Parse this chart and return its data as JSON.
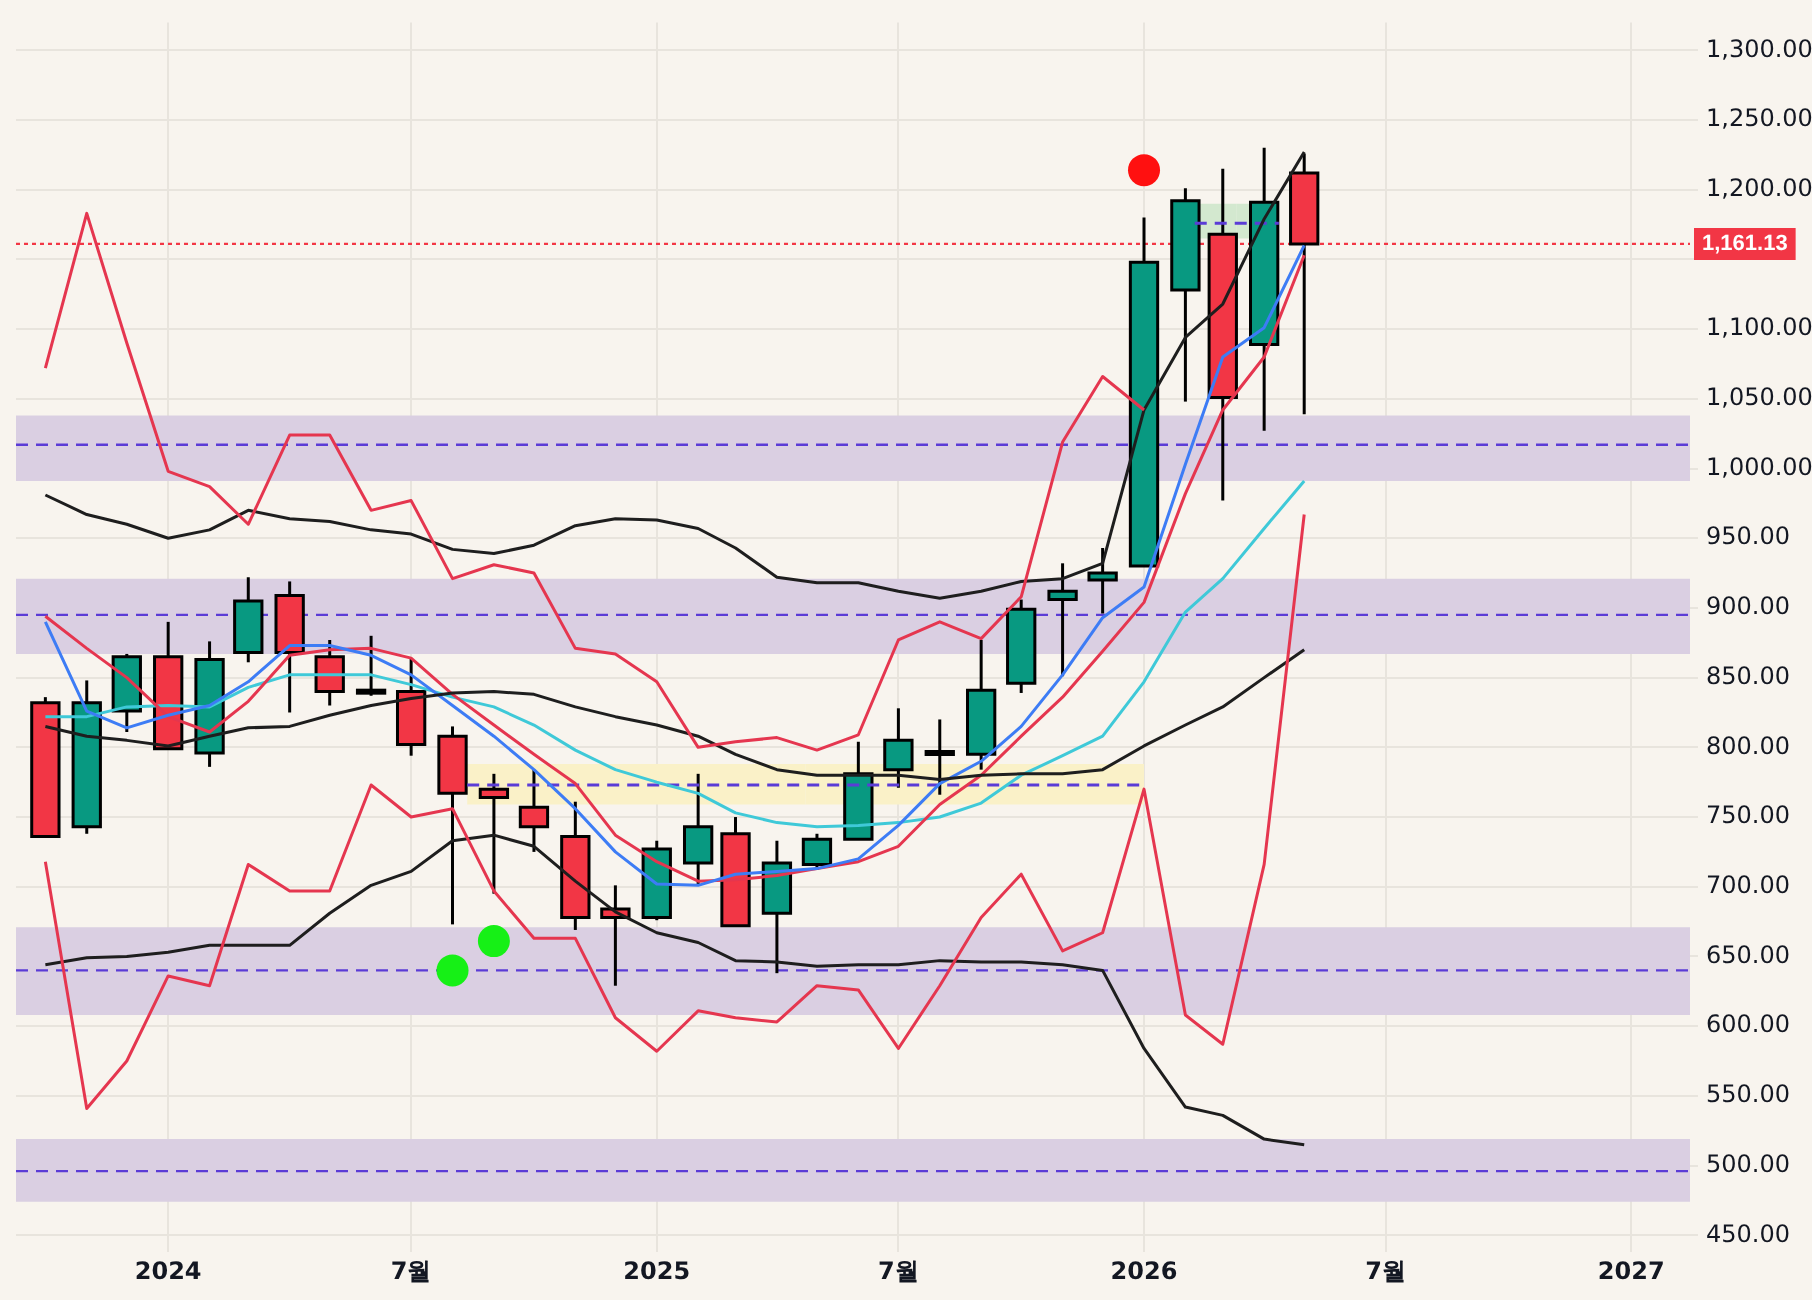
{
  "chart_data": {
    "type": "candlestick",
    "x": [
      "2023-10",
      "2023-11",
      "2023-12",
      "2024-01",
      "2024-02",
      "2024-03",
      "2024-04",
      "2024-05",
      "2024-06",
      "2024-07",
      "2024-08",
      "2024-09",
      "2024-10",
      "2024-11",
      "2024-12",
      "2025-01",
      "2025-02",
      "2025-03",
      "2025-04",
      "2025-05",
      "2025-06",
      "2025-07",
      "2025-08",
      "2025-09",
      "2025-10",
      "2025-11",
      "2025-12",
      "2026-01",
      "2026-02",
      "2026-03",
      "2026-04",
      "2026-05"
    ],
    "ohlc": [
      [
        832,
        836,
        736,
        736
      ],
      [
        743,
        848,
        738,
        832
      ],
      [
        826,
        867,
        811,
        865
      ],
      [
        865,
        890,
        799,
        799
      ],
      [
        796,
        876,
        786,
        863
      ],
      [
        868,
        922,
        861,
        905
      ],
      [
        909,
        919,
        825,
        868
      ],
      [
        865,
        877,
        830,
        840
      ],
      [
        841,
        880,
        837,
        840
      ],
      [
        840,
        864,
        794,
        802
      ],
      [
        808,
        815,
        673,
        767
      ],
      [
        770,
        781,
        695,
        764
      ],
      [
        757,
        784,
        725,
        743
      ],
      [
        736,
        761,
        669,
        678
      ],
      [
        684,
        701,
        629,
        678
      ],
      [
        678,
        733,
        676,
        727
      ],
      [
        717,
        781,
        702,
        743
      ],
      [
        738,
        750,
        672,
        672
      ],
      [
        681,
        733,
        638,
        717
      ],
      [
        716,
        738,
        712,
        734
      ],
      [
        734,
        804,
        734,
        781
      ],
      [
        784,
        828,
        771,
        805
      ],
      [
        796,
        820,
        766,
        797
      ],
      [
        795,
        877,
        784,
        841
      ],
      [
        846,
        906,
        839,
        899
      ],
      [
        906,
        932,
        851,
        912
      ],
      [
        920,
        943,
        896,
        925
      ],
      [
        930,
        1180,
        930,
        1148
      ],
      [
        1128,
        1201,
        1048,
        1192
      ],
      [
        1168,
        1215,
        977,
        1051
      ],
      [
        1089,
        1230,
        1027,
        1191
      ],
      [
        1212,
        1226,
        1039,
        1161.13
      ]
    ],
    "colors": [
      "#f23645",
      "#089981",
      "#089981",
      "#f23645",
      "#089981",
      "#089981",
      "#f23645",
      "#f23645",
      "#f23645",
      "#f23645",
      "#f23645",
      "#f23645",
      "#f23645",
      "#f23645",
      "#f23645",
      "#089981",
      "#089981",
      "#f23645",
      "#089981",
      "#089981",
      "#089981",
      "#089981",
      "#089981",
      "#089981",
      "#089981",
      "#089981",
      "#089981",
      "#089981",
      "#089981",
      "#f23645",
      "#089981",
      "#f23645"
    ],
    "series": [
      {
        "type": "line",
        "color": "#e5364f",
        "values": [
          1072,
          1183,
          1090,
          998,
          987,
          960,
          1024,
          1024,
          970,
          977,
          921,
          931,
          925,
          871,
          867,
          847,
          800,
          804,
          807,
          798,
          809,
          877,
          890,
          878,
          908,
          1019,
          1066,
          1042,
          null,
          null,
          null,
          null
        ]
      },
      {
        "type": "line",
        "color": "#e5364f",
        "values": [
          718,
          541,
          575,
          636,
          629,
          716,
          697,
          697,
          773,
          750,
          756,
          697,
          663,
          663,
          606,
          582,
          611,
          606,
          603,
          629,
          626,
          584,
          629,
          678,
          709,
          654,
          667,
          770,
          608,
          587,
          716,
          967
        ]
      },
      {
        "type": "line",
        "color": "#1e1e1e",
        "values": [
          981,
          967,
          960,
          950,
          956,
          970,
          964,
          962,
          956,
          953,
          942,
          939,
          945,
          959,
          964,
          963,
          957,
          943,
          922,
          918,
          918,
          912,
          907,
          912,
          919,
          921,
          932,
          1042,
          1094,
          1118,
          1179,
          1227
        ]
      },
      {
        "type": "line",
        "color": "#1e1e1e",
        "values": [
          815,
          808,
          805,
          801,
          808,
          814,
          815,
          823,
          830,
          835,
          839,
          840,
          838,
          829,
          822,
          816,
          808,
          795,
          784,
          780,
          780,
          780,
          777,
          780,
          781,
          781,
          784,
          801,
          816,
          829,
          850,
          870
        ]
      },
      {
        "type": "line",
        "color": "#1e1e1e",
        "values": [
          644,
          649,
          650,
          653,
          658,
          658,
          658,
          681,
          701,
          711,
          733,
          737,
          729,
          704,
          682,
          667,
          660,
          647,
          646,
          643,
          644,
          644,
          647,
          646,
          646,
          644,
          640,
          584,
          542,
          536,
          519,
          515
        ]
      },
      {
        "type": "line",
        "color": "#3d7cf5",
        "values": [
          890,
          826,
          814,
          823,
          830,
          847,
          873,
          873,
          866,
          852,
          830,
          808,
          784,
          756,
          725,
          702,
          701,
          709,
          711,
          713,
          720,
          744,
          774,
          790,
          815,
          852,
          893,
          915,
          1003,
          1080,
          1101,
          1160
        ]
      },
      {
        "type": "line",
        "color": "#e5364f",
        "values": [
          894,
          871,
          850,
          822,
          811,
          833,
          866,
          870,
          871,
          864,
          838,
          816,
          795,
          774,
          737,
          718,
          704,
          705,
          708,
          713,
          718,
          729,
          759,
          780,
          808,
          836,
          869,
          904,
          982,
          1042,
          1080,
          1153
        ]
      },
      {
        "type": "line",
        "color": "#3fc9d8",
        "values": [
          822,
          822,
          829,
          830,
          829,
          843,
          852,
          852,
          852,
          845,
          836,
          829,
          816,
          798,
          784,
          775,
          767,
          753,
          746,
          743,
          744,
          746,
          750,
          760,
          780,
          794,
          808,
          847,
          897,
          921,
          957,
          991
        ]
      },
      {
        "type": "line",
        "color": "#5b3cd6",
        "line_style": "dashed",
        "x": [
          "2024-08-12",
          "2026-01-01"
        ],
        "values": [
          773,
          773
        ],
        "lower": [
          759,
          759
        ],
        "upper": [
          788,
          788
        ],
        "colors": [
          "#faf1c8",
          "#faf1c8"
        ]
      },
      {
        "type": "line",
        "color": "#5b3cd6",
        "line_style": "dashed",
        "x": [
          "2026-02-08",
          "2026-04-12"
        ],
        "values": [
          1176,
          1176
        ],
        "lower": [
          1165,
          1165
        ],
        "upper": [
          1190,
          1190
        ],
        "colors": [
          "#d3e8cf",
          "#d3e8cf"
        ]
      },
      {
        "type": "scatter",
        "marker": "circle",
        "x": [
          "2024-08",
          "2024-09",
          "2026-01"
        ],
        "values": [
          640,
          661,
          1214
        ],
        "colors": [
          "#16f016",
          "#16f016",
          "#ff1010"
        ]
      }
    ],
    "bands": [
      {
        "axis": "y",
        "from": 991,
        "to": 1038,
        "color": "#dacfe2"
      },
      {
        "axis": "y",
        "from": 867,
        "to": 921,
        "color": "#dacfe2"
      },
      {
        "axis": "y",
        "from": 608,
        "to": 671,
        "color": "#dacfe2"
      },
      {
        "axis": "y",
        "from": 474,
        "to": 519,
        "color": "#dacfe2"
      }
    ],
    "ref_lines": [
      {
        "axis": "y",
        "value": 1017,
        "color": "#5b3cd6",
        "line_style": "dashed"
      },
      {
        "axis": "y",
        "value": 895,
        "color": "#5b3cd6",
        "line_style": "dashed"
      },
      {
        "axis": "y",
        "value": 640,
        "color": "#5b3cd6",
        "line_style": "dashed"
      },
      {
        "axis": "y",
        "value": 496,
        "color": "#5b3cd6",
        "line_style": "dashed"
      },
      {
        "axis": "y",
        "value": 1161.13,
        "label": "1,161.13",
        "color": "#f23645",
        "line_style": "dotted"
      }
    ],
    "xlim": [
      "2023-09-09",
      "2027-02-14"
    ],
    "xticks": [
      {
        "value": "2024-01",
        "label": "2024"
      },
      {
        "value": "2024-07",
        "label": "7월"
      },
      {
        "value": "2025-01",
        "label": "2025"
      },
      {
        "value": "2025-07",
        "label": "7월"
      },
      {
        "value": "2026-01",
        "label": "2026"
      },
      {
        "value": "2026-07",
        "label": "7월"
      },
      {
        "value": "2027-01",
        "label": "2027"
      }
    ],
    "ylim": [
      438,
      1320
    ],
    "yticks": [
      {
        "value": 450,
        "label": "450.00"
      },
      {
        "value": 500,
        "label": "500.00"
      },
      {
        "value": 550,
        "label": "550.00"
      },
      {
        "value": 600,
        "label": "600.00"
      },
      {
        "value": 650,
        "label": "650.00"
      },
      {
        "value": 700,
        "label": "700.00"
      },
      {
        "value": 750,
        "label": "750.00"
      },
      {
        "value": 800,
        "label": "800.00"
      },
      {
        "value": 850,
        "label": "850.00"
      },
      {
        "value": 900,
        "label": "900.00"
      },
      {
        "value": 950,
        "label": "950.00"
      },
      {
        "value": 1000,
        "label": "1,000.00"
      },
      {
        "value": 1050,
        "label": "1,050.00"
      },
      {
        "value": 1100,
        "label": "1,100.00"
      },
      {
        "value": 1150,
        "label": null
      },
      {
        "value": 1200,
        "label": "1,200.00"
      },
      {
        "value": 1250,
        "label": "1,250.00"
      },
      {
        "value": 1300,
        "label": "1,300.00"
      }
    ],
    "grid": true,
    "legend": false,
    "marker": "none",
    "line_style": "solid"
  }
}
